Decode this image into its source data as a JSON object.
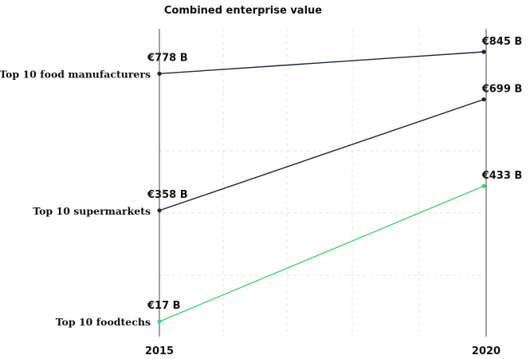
{
  "chart_data": {
    "type": "slope",
    "title": "Combined enterprise value",
    "x": [
      "2015",
      "2020"
    ],
    "unit_prefix": "€",
    "unit_suffix": " B",
    "series": [
      {
        "name": "Top 10 food manufacturers",
        "values": [
          778,
          845
        ],
        "labels": [
          "€778 B",
          "€845 B"
        ],
        "color": "#1b2447"
      },
      {
        "name": "Top 10 supermarkets",
        "values": [
          358,
          699
        ],
        "labels": [
          "€358 B",
          "€699 B"
        ],
        "color": "#1b2447"
      },
      {
        "name": "Top 10 foodtechs",
        "values": [
          17,
          433
        ],
        "labels": [
          "€17 B",
          "€433 B"
        ],
        "color": "#3ecf7f"
      }
    ],
    "ylim": [
      0,
      900
    ],
    "grid": true
  }
}
